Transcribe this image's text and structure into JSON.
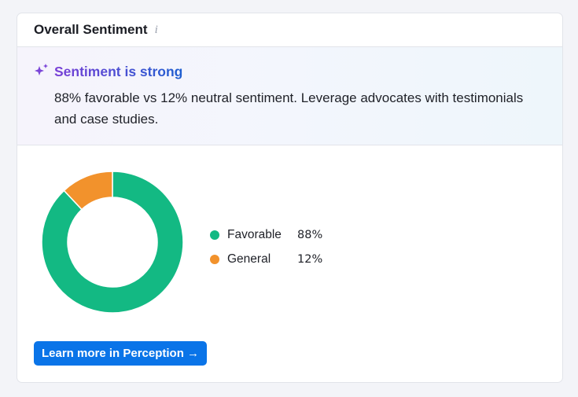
{
  "card": {
    "title": "Overall Sentiment",
    "info_glyph": "i",
    "icon": "info-icon"
  },
  "insight": {
    "icon": "sparkle-icon",
    "title": "Sentiment is strong",
    "body": "88% favorable vs 12% neutral sentiment. Leverage advocates with testimonials and case studies."
  },
  "legend": [
    {
      "label": "Favorable",
      "value": "88%",
      "color": "#13b983"
    },
    {
      "label": "General",
      "value": "12%",
      "color": "#f2922c"
    }
  ],
  "chart_data": {
    "type": "pie",
    "categories": [
      "Favorable",
      "General"
    ],
    "values": [
      88,
      12
    ],
    "colors": [
      "#13b983",
      "#f2922c"
    ],
    "title": "",
    "donut": true
  },
  "cta": {
    "label": "Learn more in Perception →",
    "color": "#0a74e8"
  }
}
